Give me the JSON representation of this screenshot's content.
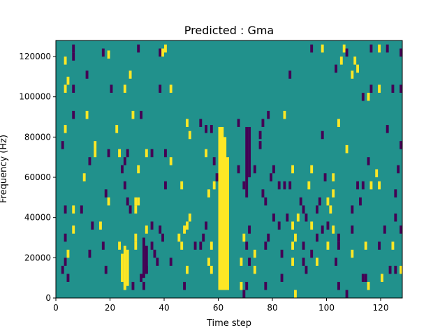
{
  "chart_data": {
    "type": "heatmap",
    "title": "Predicted : Gma",
    "xlabel": "Time step",
    "ylabel": "Frequency (Hz)",
    "xlim": [
      0,
      128
    ],
    "ylim": [
      0,
      128000
    ],
    "x_ticks": [
      0,
      20,
      40,
      60,
      80,
      100,
      120
    ],
    "y_ticks": [
      0,
      20000,
      40000,
      60000,
      80000,
      100000,
      120000
    ],
    "colormap": "viridis",
    "levels": {
      "low": "#440154",
      "mid": "#21918c",
      "high": "#fde725"
    },
    "background_level": "mid",
    "column_bands": [
      {
        "x": [
          60,
          62
        ],
        "y": [
          4000,
          85000
        ],
        "level": "high"
      },
      {
        "x": [
          61,
          63
        ],
        "y": [
          4000,
          80000
        ],
        "level": "high"
      },
      {
        "x": [
          62,
          64
        ],
        "y": [
          4000,
          70000
        ],
        "level": "high"
      },
      {
        "x": [
          70,
          71
        ],
        "y": [
          50000,
          85000
        ],
        "level": "low"
      },
      {
        "x": [
          71,
          72
        ],
        "y": [
          60000,
          85000
        ],
        "level": "low"
      },
      {
        "x": [
          24,
          25
        ],
        "y": [
          8000,
          22000
        ],
        "level": "high"
      },
      {
        "x": [
          25,
          26
        ],
        "y": [
          4000,
          26000
        ],
        "level": "high"
      },
      {
        "x": [
          26,
          27
        ],
        "y": [
          6000,
          24000
        ],
        "level": "high"
      },
      {
        "x": [
          32,
          33
        ],
        "y": [
          10000,
          30000
        ],
        "level": "low"
      },
      {
        "x": [
          33,
          34
        ],
        "y": [
          12000,
          26000
        ],
        "level": "low"
      }
    ],
    "cells": [
      {
        "x": 6,
        "y": 124000,
        "level": "low"
      },
      {
        "x": 6,
        "y": 120000,
        "level": "low"
      },
      {
        "x": 3,
        "y": 118000,
        "level": "high"
      },
      {
        "x": 19,
        "y": 121000,
        "level": "high"
      },
      {
        "x": 17,
        "y": 122000,
        "level": "low"
      },
      {
        "x": 30,
        "y": 124000,
        "level": "low"
      },
      {
        "x": 38,
        "y": 122000,
        "level": "low"
      },
      {
        "x": 39,
        "y": 122000,
        "level": "high"
      },
      {
        "x": 40,
        "y": 124000,
        "level": "high"
      },
      {
        "x": 94,
        "y": 124000,
        "level": "low"
      },
      {
        "x": 98,
        "y": 124000,
        "level": "high"
      },
      {
        "x": 106,
        "y": 124000,
        "level": "high"
      },
      {
        "x": 107,
        "y": 122000,
        "level": "low"
      },
      {
        "x": 116,
        "y": 124000,
        "level": "low"
      },
      {
        "x": 119,
        "y": 124000,
        "level": "high"
      },
      {
        "x": 122,
        "y": 124000,
        "level": "low"
      },
      {
        "x": 127,
        "y": 122000,
        "level": "low"
      },
      {
        "x": 110,
        "y": 118000,
        "level": "high"
      },
      {
        "x": 105,
        "y": 118000,
        "level": "high"
      },
      {
        "x": 4,
        "y": 108000,
        "level": "high"
      },
      {
        "x": 11,
        "y": 111000,
        "level": "low"
      },
      {
        "x": 27,
        "y": 111000,
        "level": "high"
      },
      {
        "x": 103,
        "y": 114000,
        "level": "low"
      },
      {
        "x": 111,
        "y": 114000,
        "level": "high"
      },
      {
        "x": 86,
        "y": 111000,
        "level": "low"
      },
      {
        "x": 109,
        "y": 111000,
        "level": "high"
      },
      {
        "x": 3,
        "y": 104000,
        "level": "high"
      },
      {
        "x": 6,
        "y": 104000,
        "level": "low"
      },
      {
        "x": 20,
        "y": 104000,
        "level": "low"
      },
      {
        "x": 25,
        "y": 104000,
        "level": "high"
      },
      {
        "x": 38,
        "y": 104000,
        "level": "low"
      },
      {
        "x": 42,
        "y": 104000,
        "level": "high"
      },
      {
        "x": 116,
        "y": 104000,
        "level": "low"
      },
      {
        "x": 119,
        "y": 104000,
        "level": "high"
      },
      {
        "x": 124,
        "y": 104000,
        "level": "low"
      },
      {
        "x": 127,
        "y": 104000,
        "level": "low"
      },
      {
        "x": 113,
        "y": 100000,
        "level": "low"
      },
      {
        "x": 115,
        "y": 100000,
        "level": "high"
      },
      {
        "x": 6,
        "y": 91000,
        "level": "low"
      },
      {
        "x": 11,
        "y": 91000,
        "level": "high"
      },
      {
        "x": 28,
        "y": 91000,
        "level": "high"
      },
      {
        "x": 31,
        "y": 91000,
        "level": "low"
      },
      {
        "x": 78,
        "y": 91000,
        "level": "low"
      },
      {
        "x": 84,
        "y": 91000,
        "level": "high"
      },
      {
        "x": 48,
        "y": 87000,
        "level": "high"
      },
      {
        "x": 53,
        "y": 87000,
        "level": "low"
      },
      {
        "x": 67,
        "y": 87000,
        "level": "low"
      },
      {
        "x": 76,
        "y": 87000,
        "level": "low"
      },
      {
        "x": 104,
        "y": 87000,
        "level": "high"
      },
      {
        "x": 3,
        "y": 84000,
        "level": "high"
      },
      {
        "x": 22,
        "y": 84000,
        "level": "high"
      },
      {
        "x": 55,
        "y": 84000,
        "level": "low"
      },
      {
        "x": 57,
        "y": 84000,
        "level": "low"
      },
      {
        "x": 49,
        "y": 81000,
        "level": "high"
      },
      {
        "x": 75,
        "y": 81000,
        "level": "low"
      },
      {
        "x": 98,
        "y": 81000,
        "level": "low"
      },
      {
        "x": 122,
        "y": 84000,
        "level": "low"
      },
      {
        "x": 2,
        "y": 76000,
        "level": "low"
      },
      {
        "x": 14,
        "y": 76000,
        "level": "high"
      },
      {
        "x": 75,
        "y": 76000,
        "level": "low"
      },
      {
        "x": 107,
        "y": 74000,
        "level": "high"
      },
      {
        "x": 127,
        "y": 76000,
        "level": "low"
      },
      {
        "x": 14,
        "y": 72000,
        "level": "high"
      },
      {
        "x": 19,
        "y": 72000,
        "level": "low"
      },
      {
        "x": 23,
        "y": 72000,
        "level": "high"
      },
      {
        "x": 26,
        "y": 72000,
        "level": "low"
      },
      {
        "x": 33,
        "y": 72000,
        "level": "high"
      },
      {
        "x": 35,
        "y": 72000,
        "level": "low"
      },
      {
        "x": 40,
        "y": 72000,
        "level": "low"
      },
      {
        "x": 55,
        "y": 72000,
        "level": "high"
      },
      {
        "x": 12,
        "y": 68000,
        "level": "low"
      },
      {
        "x": 25,
        "y": 68000,
        "level": "low"
      },
      {
        "x": 42,
        "y": 68000,
        "level": "high"
      },
      {
        "x": 58,
        "y": 68000,
        "level": "low"
      },
      {
        "x": 115,
        "y": 68000,
        "level": "low"
      },
      {
        "x": 24,
        "y": 64000,
        "level": "low"
      },
      {
        "x": 30,
        "y": 64000,
        "level": "high"
      },
      {
        "x": 67,
        "y": 64000,
        "level": "low"
      },
      {
        "x": 73,
        "y": 64000,
        "level": "low"
      },
      {
        "x": 80,
        "y": 64000,
        "level": "low"
      },
      {
        "x": 87,
        "y": 64000,
        "level": "high"
      },
      {
        "x": 94,
        "y": 64000,
        "level": "high"
      },
      {
        "x": 118,
        "y": 62000,
        "level": "high"
      },
      {
        "x": 126,
        "y": 64000,
        "level": "low"
      },
      {
        "x": 10,
        "y": 60000,
        "level": "high"
      },
      {
        "x": 59,
        "y": 60000,
        "level": "low"
      },
      {
        "x": 79,
        "y": 60000,
        "level": "low"
      },
      {
        "x": 99,
        "y": 60000,
        "level": "low"
      },
      {
        "x": 102,
        "y": 60000,
        "level": "high"
      },
      {
        "x": 25,
        "y": 56000,
        "level": "low"
      },
      {
        "x": 40,
        "y": 56000,
        "level": "low"
      },
      {
        "x": 46,
        "y": 56000,
        "level": "high"
      },
      {
        "x": 58,
        "y": 56000,
        "level": "high"
      },
      {
        "x": 69,
        "y": 56000,
        "level": "low"
      },
      {
        "x": 82,
        "y": 56000,
        "level": "low"
      },
      {
        "x": 84,
        "y": 56000,
        "level": "low"
      },
      {
        "x": 86,
        "y": 56000,
        "level": "low"
      },
      {
        "x": 93,
        "y": 56000,
        "level": "high"
      },
      {
        "x": 111,
        "y": 56000,
        "level": "low"
      },
      {
        "x": 113,
        "y": 56000,
        "level": "low"
      },
      {
        "x": 116,
        "y": 56000,
        "level": "high"
      },
      {
        "x": 119,
        "y": 56000,
        "level": "high"
      },
      {
        "x": 18,
        "y": 52000,
        "level": "low"
      },
      {
        "x": 56,
        "y": 52000,
        "level": "high"
      },
      {
        "x": 76,
        "y": 52000,
        "level": "low"
      },
      {
        "x": 102,
        "y": 52000,
        "level": "high"
      },
      {
        "x": 125,
        "y": 52000,
        "level": "low"
      },
      {
        "x": 19,
        "y": 48000,
        "level": "high"
      },
      {
        "x": 26,
        "y": 48000,
        "level": "low"
      },
      {
        "x": 29,
        "y": 48000,
        "level": "high"
      },
      {
        "x": 30,
        "y": 48000,
        "level": "high"
      },
      {
        "x": 77,
        "y": 48000,
        "level": "low"
      },
      {
        "x": 90,
        "y": 48000,
        "level": "low"
      },
      {
        "x": 97,
        "y": 48000,
        "level": "low"
      },
      {
        "x": 100,
        "y": 48000,
        "level": "high"
      },
      {
        "x": 112,
        "y": 48000,
        "level": "low"
      },
      {
        "x": 3,
        "y": 44000,
        "level": "low"
      },
      {
        "x": 6,
        "y": 44000,
        "level": "high"
      },
      {
        "x": 9,
        "y": 44000,
        "level": "low"
      },
      {
        "x": 27,
        "y": 44000,
        "level": "low"
      },
      {
        "x": 29,
        "y": 44000,
        "level": "high"
      },
      {
        "x": 91,
        "y": 44000,
        "level": "low"
      },
      {
        "x": 96,
        "y": 44000,
        "level": "low"
      },
      {
        "x": 101,
        "y": 44000,
        "level": "high"
      },
      {
        "x": 109,
        "y": 44000,
        "level": "low"
      },
      {
        "x": 49,
        "y": 40000,
        "level": "high"
      },
      {
        "x": 80,
        "y": 40000,
        "level": "low"
      },
      {
        "x": 85,
        "y": 40000,
        "level": "low"
      },
      {
        "x": 89,
        "y": 40000,
        "level": "high"
      },
      {
        "x": 92,
        "y": 40000,
        "level": "low"
      },
      {
        "x": 125,
        "y": 40000,
        "level": "low"
      },
      {
        "x": 13,
        "y": 36000,
        "level": "low"
      },
      {
        "x": 16,
        "y": 36000,
        "level": "high"
      },
      {
        "x": 35,
        "y": 36000,
        "level": "low"
      },
      {
        "x": 48,
        "y": 36000,
        "level": "high"
      },
      {
        "x": 55,
        "y": 36000,
        "level": "low"
      },
      {
        "x": 82,
        "y": 36000,
        "level": "low"
      },
      {
        "x": 87,
        "y": 36000,
        "level": "high"
      },
      {
        "x": 94,
        "y": 36000,
        "level": "high"
      },
      {
        "x": 100,
        "y": 36000,
        "level": "low"
      },
      {
        "x": 6,
        "y": 34000,
        "level": "high"
      },
      {
        "x": 33,
        "y": 34000,
        "level": "high"
      },
      {
        "x": 38,
        "y": 34000,
        "level": "low"
      },
      {
        "x": 47,
        "y": 34000,
        "level": "high"
      },
      {
        "x": 71,
        "y": 34000,
        "level": "low"
      },
      {
        "x": 98,
        "y": 34000,
        "level": "low"
      },
      {
        "x": 102,
        "y": 34000,
        "level": "high"
      },
      {
        "x": 109,
        "y": 34000,
        "level": "low"
      },
      {
        "x": 121,
        "y": 34000,
        "level": "low"
      },
      {
        "x": 127,
        "y": 34000,
        "level": "low"
      },
      {
        "x": 3,
        "y": 30000,
        "level": "low"
      },
      {
        "x": 29,
        "y": 30000,
        "level": "high"
      },
      {
        "x": 39,
        "y": 30000,
        "level": "low"
      },
      {
        "x": 45,
        "y": 30000,
        "level": "high"
      },
      {
        "x": 54,
        "y": 30000,
        "level": "low"
      },
      {
        "x": 69,
        "y": 30000,
        "level": "high"
      },
      {
        "x": 78,
        "y": 30000,
        "level": "low"
      },
      {
        "x": 88,
        "y": 30000,
        "level": "high"
      },
      {
        "x": 96,
        "y": 30000,
        "level": "low"
      },
      {
        "x": 104,
        "y": 30000,
        "level": "low"
      },
      {
        "x": 104,
        "y": 26000,
        "level": "low"
      },
      {
        "x": 17,
        "y": 26000,
        "level": "low"
      },
      {
        "x": 23,
        "y": 26000,
        "level": "high"
      },
      {
        "x": 29,
        "y": 26000,
        "level": "high"
      },
      {
        "x": 35,
        "y": 26000,
        "level": "low"
      },
      {
        "x": 46,
        "y": 26000,
        "level": "high"
      },
      {
        "x": 51,
        "y": 26000,
        "level": "low"
      },
      {
        "x": 53,
        "y": 26000,
        "level": "low"
      },
      {
        "x": 57,
        "y": 26000,
        "level": "high"
      },
      {
        "x": 70,
        "y": 26000,
        "level": "low"
      },
      {
        "x": 77,
        "y": 26000,
        "level": "low"
      },
      {
        "x": 87,
        "y": 26000,
        "level": "high"
      },
      {
        "x": 91,
        "y": 26000,
        "level": "low"
      },
      {
        "x": 100,
        "y": 26000,
        "level": "high"
      },
      {
        "x": 114,
        "y": 26000,
        "level": "high"
      },
      {
        "x": 119,
        "y": 26000,
        "level": "low"
      },
      {
        "x": 124,
        "y": 26000,
        "level": "high"
      },
      {
        "x": 4,
        "y": 22000,
        "level": "high"
      },
      {
        "x": 12,
        "y": 22000,
        "level": "low"
      },
      {
        "x": 36,
        "y": 22000,
        "level": "low"
      },
      {
        "x": 73,
        "y": 22000,
        "level": "high"
      },
      {
        "x": 83,
        "y": 22000,
        "level": "low"
      },
      {
        "x": 94,
        "y": 22000,
        "level": "low"
      },
      {
        "x": 109,
        "y": 22000,
        "level": "high"
      },
      {
        "x": 3,
        "y": 18000,
        "level": "low"
      },
      {
        "x": 37,
        "y": 18000,
        "level": "low"
      },
      {
        "x": 42,
        "y": 18000,
        "level": "low"
      },
      {
        "x": 56,
        "y": 18000,
        "level": "high"
      },
      {
        "x": 68,
        "y": 18000,
        "level": "high"
      },
      {
        "x": 71,
        "y": 18000,
        "level": "low"
      },
      {
        "x": 87,
        "y": 18000,
        "level": "high"
      },
      {
        "x": 91,
        "y": 18000,
        "level": "low"
      },
      {
        "x": 96,
        "y": 18000,
        "level": "high"
      },
      {
        "x": 103,
        "y": 18000,
        "level": "low"
      },
      {
        "x": 2,
        "y": 14000,
        "level": "low"
      },
      {
        "x": 18,
        "y": 14000,
        "level": "low"
      },
      {
        "x": 33,
        "y": 14000,
        "level": "low"
      },
      {
        "x": 48,
        "y": 14000,
        "level": "high"
      },
      {
        "x": 57,
        "y": 14000,
        "level": "high"
      },
      {
        "x": 73,
        "y": 14000,
        "level": "high"
      },
      {
        "x": 92,
        "y": 14000,
        "level": "low"
      },
      {
        "x": 123,
        "y": 14000,
        "level": "low"
      },
      {
        "x": 125,
        "y": 14000,
        "level": "low"
      },
      {
        "x": 127,
        "y": 14000,
        "level": "high"
      },
      {
        "x": 4,
        "y": 10000,
        "level": "low"
      },
      {
        "x": 31,
        "y": 10000,
        "level": "low"
      },
      {
        "x": 83,
        "y": 10000,
        "level": "low"
      },
      {
        "x": 113,
        "y": 10000,
        "level": "low"
      },
      {
        "x": 114,
        "y": 10000,
        "level": "low"
      },
      {
        "x": 120,
        "y": 10000,
        "level": "high"
      },
      {
        "x": 68,
        "y": 6000,
        "level": "high"
      },
      {
        "x": 25,
        "y": 6000,
        "level": "high"
      },
      {
        "x": 28,
        "y": 6000,
        "level": "low"
      },
      {
        "x": 32,
        "y": 6000,
        "level": "low"
      },
      {
        "x": 47,
        "y": 6000,
        "level": "low"
      },
      {
        "x": 70,
        "y": 6000,
        "level": "low"
      },
      {
        "x": 77,
        "y": 6000,
        "level": "low"
      },
      {
        "x": 104,
        "y": 6000,
        "level": "low"
      },
      {
        "x": 115,
        "y": 6000,
        "level": "high"
      },
      {
        "x": 69,
        "y": 2000,
        "level": "low"
      },
      {
        "x": 88,
        "y": 2000,
        "level": "high"
      },
      {
        "x": 107,
        "y": 2000,
        "level": "low"
      }
    ]
  }
}
